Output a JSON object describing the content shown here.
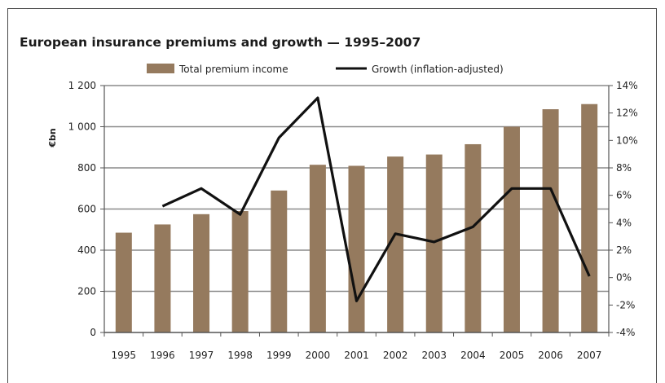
{
  "chart_data": {
    "type": "bar+line",
    "title": "European insurance premiums and growth — 1995–2007",
    "categories": [
      "1995",
      "1996",
      "1997",
      "1998",
      "1999",
      "2000",
      "2001",
      "2002",
      "2003",
      "2004",
      "2005",
      "2006",
      "2007"
    ],
    "series": [
      {
        "name": "Total premium income",
        "type": "bar",
        "axis": "left",
        "color": "#957a5e",
        "values": [
          485,
          525,
          575,
          590,
          690,
          815,
          810,
          855,
          865,
          915,
          1000,
          1085,
          1110
        ]
      },
      {
        "name": "Growth (inflation-adjusted)",
        "type": "line",
        "axis": "right",
        "color": "#111111",
        "values": [
          null,
          5.2,
          6.5,
          4.6,
          10.2,
          13.1,
          -1.7,
          3.2,
          2.6,
          3.7,
          6.5,
          6.5,
          0.1
        ]
      }
    ],
    "ylabel": "€bn",
    "ylim": [
      0,
      1200
    ],
    "yticks": [
      "0",
      "200",
      "400",
      "600",
      "800",
      "1 000",
      "1 200"
    ],
    "y2lim": [
      -4,
      14
    ],
    "y2ticks": [
      "-4%",
      "-2%",
      "0%",
      "2%",
      "4%",
      "6%",
      "8%",
      "10%",
      "12%",
      "14%"
    ],
    "grid": true,
    "legend_position": "top"
  }
}
